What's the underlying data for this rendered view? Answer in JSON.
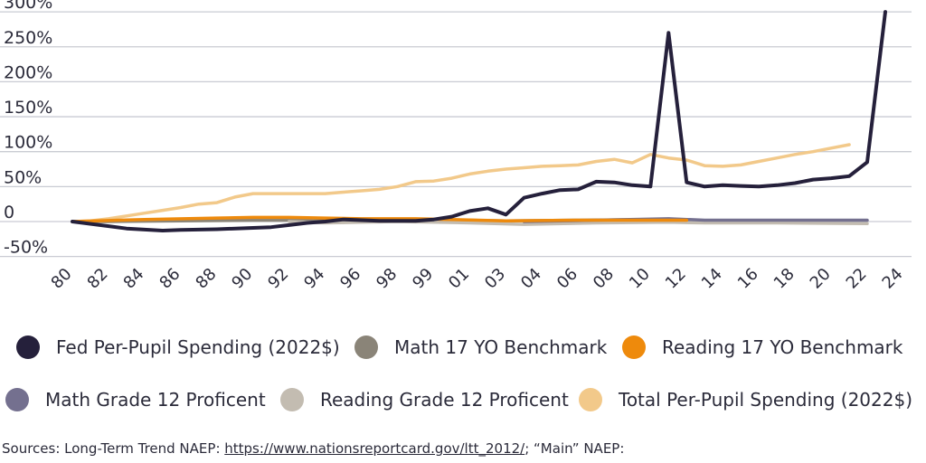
{
  "chart_data": {
    "type": "line",
    "title": "",
    "xlabel": "",
    "ylabel": "",
    "ylim": [
      -50,
      300
    ],
    "yticks": [
      {
        "value": 300,
        "label": "300%"
      },
      {
        "value": 250,
        "label": "250%"
      },
      {
        "value": 200,
        "label": "200%"
      },
      {
        "value": 150,
        "label": "150%"
      },
      {
        "value": 100,
        "label": "100%"
      },
      {
        "value": 50,
        "label": "50%"
      },
      {
        "value": 0,
        "label": "0"
      },
      {
        "value": -50,
        "label": "-50%"
      }
    ],
    "xlim": [
      1980,
      2024
    ],
    "xticks": [
      {
        "value": 1980,
        "label": "80"
      },
      {
        "value": 1982,
        "label": "82"
      },
      {
        "value": 1984,
        "label": "84"
      },
      {
        "value": 1986,
        "label": "86"
      },
      {
        "value": 1988,
        "label": "88"
      },
      {
        "value": 1990,
        "label": "90"
      },
      {
        "value": 1992,
        "label": "92"
      },
      {
        "value": 1994,
        "label": "94"
      },
      {
        "value": 1996,
        "label": "96"
      },
      {
        "value": 1998,
        "label": "98"
      },
      {
        "value": 2000,
        "label": "99"
      },
      {
        "value": 2002,
        "label": "01"
      },
      {
        "value": 2004,
        "label": "03"
      },
      {
        "value": 2006,
        "label": "04"
      },
      {
        "value": 2008,
        "label": "06"
      },
      {
        "value": 2010,
        "label": "08"
      },
      {
        "value": 2012,
        "label": "10"
      },
      {
        "value": 2014,
        "label": "12"
      },
      {
        "value": 2016,
        "label": "14"
      },
      {
        "value": 2018,
        "label": "16"
      },
      {
        "value": 2020,
        "label": "18"
      },
      {
        "value": 2022,
        "label": "20"
      },
      {
        "value": 2024,
        "label": "22"
      },
      {
        "value": 2026,
        "label": "24"
      }
    ],
    "x_domain": [
      1980,
      2026
    ],
    "series": [
      {
        "name": "Total Per-Pupil Spending (2022$)",
        "color": "#f2c98a",
        "x": [
          1980,
          1981,
          1982,
          1983,
          1984,
          1985,
          1986,
          1987,
          1988,
          1989,
          1990,
          1991,
          1992,
          1993,
          1994,
          1995,
          1996,
          1997,
          1998,
          1999,
          2000,
          2001,
          2002,
          2003,
          2004,
          2005,
          2006,
          2007,
          2008,
          2009,
          2010,
          2011,
          2012,
          2013,
          2014,
          2015,
          2016,
          2017,
          2018,
          2019,
          2020,
          2021,
          2022,
          2023
        ],
        "values": [
          0,
          1,
          4,
          8,
          12,
          16,
          20,
          25,
          27,
          35,
          40,
          40,
          40,
          40,
          40,
          42,
          44,
          46,
          50,
          57,
          58,
          62,
          68,
          72,
          75,
          77,
          79,
          80,
          81,
          86,
          89,
          84,
          96,
          91,
          88,
          80,
          79,
          81,
          86,
          91,
          96,
          100,
          105,
          110
        ]
      },
      {
        "name": "Math 17 YO Benchmark",
        "color": "#8a8478",
        "x": [
          1980,
          1982,
          1986,
          1990,
          1992,
          1994,
          1996,
          1999,
          2004,
          2008,
          2012
        ],
        "values": [
          0,
          0,
          1,
          2,
          2,
          2,
          2,
          3,
          1,
          2,
          3
        ]
      },
      {
        "name": "Reading Grade 12 Proficent",
        "color": "#c3bcb1",
        "x": [
          1992,
          1994,
          1998,
          2002,
          2005,
          2009,
          2013,
          2015,
          2019,
          2024
        ],
        "values": [
          0,
          -2,
          0,
          -2,
          -4,
          -2,
          -1,
          -2,
          -2,
          -3
        ]
      },
      {
        "name": "Math Grade 12 Proficent",
        "color": "#74708f",
        "x": [
          2005,
          2009,
          2013,
          2015,
          2019,
          2024
        ],
        "values": [
          0,
          2,
          4,
          2,
          2,
          2
        ]
      },
      {
        "name": "Reading 17 YO Benchmark",
        "color": "#ee8a0c",
        "x": [
          1980,
          1984,
          1988,
          1990,
          1992,
          1994,
          1996,
          1999,
          2004,
          2008,
          2012,
          2014
        ],
        "values": [
          0,
          3,
          5,
          6,
          6,
          5,
          4,
          4,
          1,
          2,
          2,
          2
        ]
      },
      {
        "name": "Fed Per-Pupil Spending (2022$)",
        "color": "#25203b",
        "x": [
          1980,
          1983,
          1985,
          1986,
          1988,
          1990,
          1991,
          1992,
          1993,
          1994,
          1995,
          1996,
          1997,
          1998,
          1999,
          2000,
          2001,
          2002,
          2003,
          2004,
          2005,
          2006,
          2007,
          2008,
          2009,
          2010,
          2011,
          2012,
          2013,
          2014,
          2015,
          2016,
          2017,
          2018,
          2019,
          2020,
          2021,
          2022,
          2023,
          2024,
          2025
        ],
        "values": [
          0,
          -10,
          -13,
          -12,
          -11,
          -9,
          -8,
          -5,
          -2,
          0,
          3,
          2,
          1,
          1,
          1,
          3,
          7,
          15,
          19,
          10,
          34,
          40,
          45,
          46,
          57,
          56,
          52,
          50,
          270,
          56,
          50,
          52,
          51,
          50,
          52,
          55,
          60,
          62,
          65,
          85,
          300
        ]
      }
    ],
    "legend": [
      {
        "name": "Fed Per-Pupil Spending (2022$)",
        "color": "#25203b"
      },
      {
        "name": "Math 17 YO Benchmark",
        "color": "#8a8478"
      },
      {
        "name": "Reading 17 YO Benchmark",
        "color": "#ee8a0c"
      },
      {
        "name": "Math Grade 12 Proficent",
        "color": "#74708f"
      },
      {
        "name": "Reading Grade 12 Proficent",
        "color": "#c3bcb1"
      },
      {
        "name": "Total Per-Pupil Spending (2022$)",
        "color": "#f2c98a"
      }
    ],
    "legend_position": "bottom"
  },
  "sources": {
    "prefix": "Sources: Long-Term Trend NAEP: ",
    "link_text": "https://www.nationsreportcard.gov/ltt_2012/",
    "suffix": "; “Main” NAEP:"
  }
}
